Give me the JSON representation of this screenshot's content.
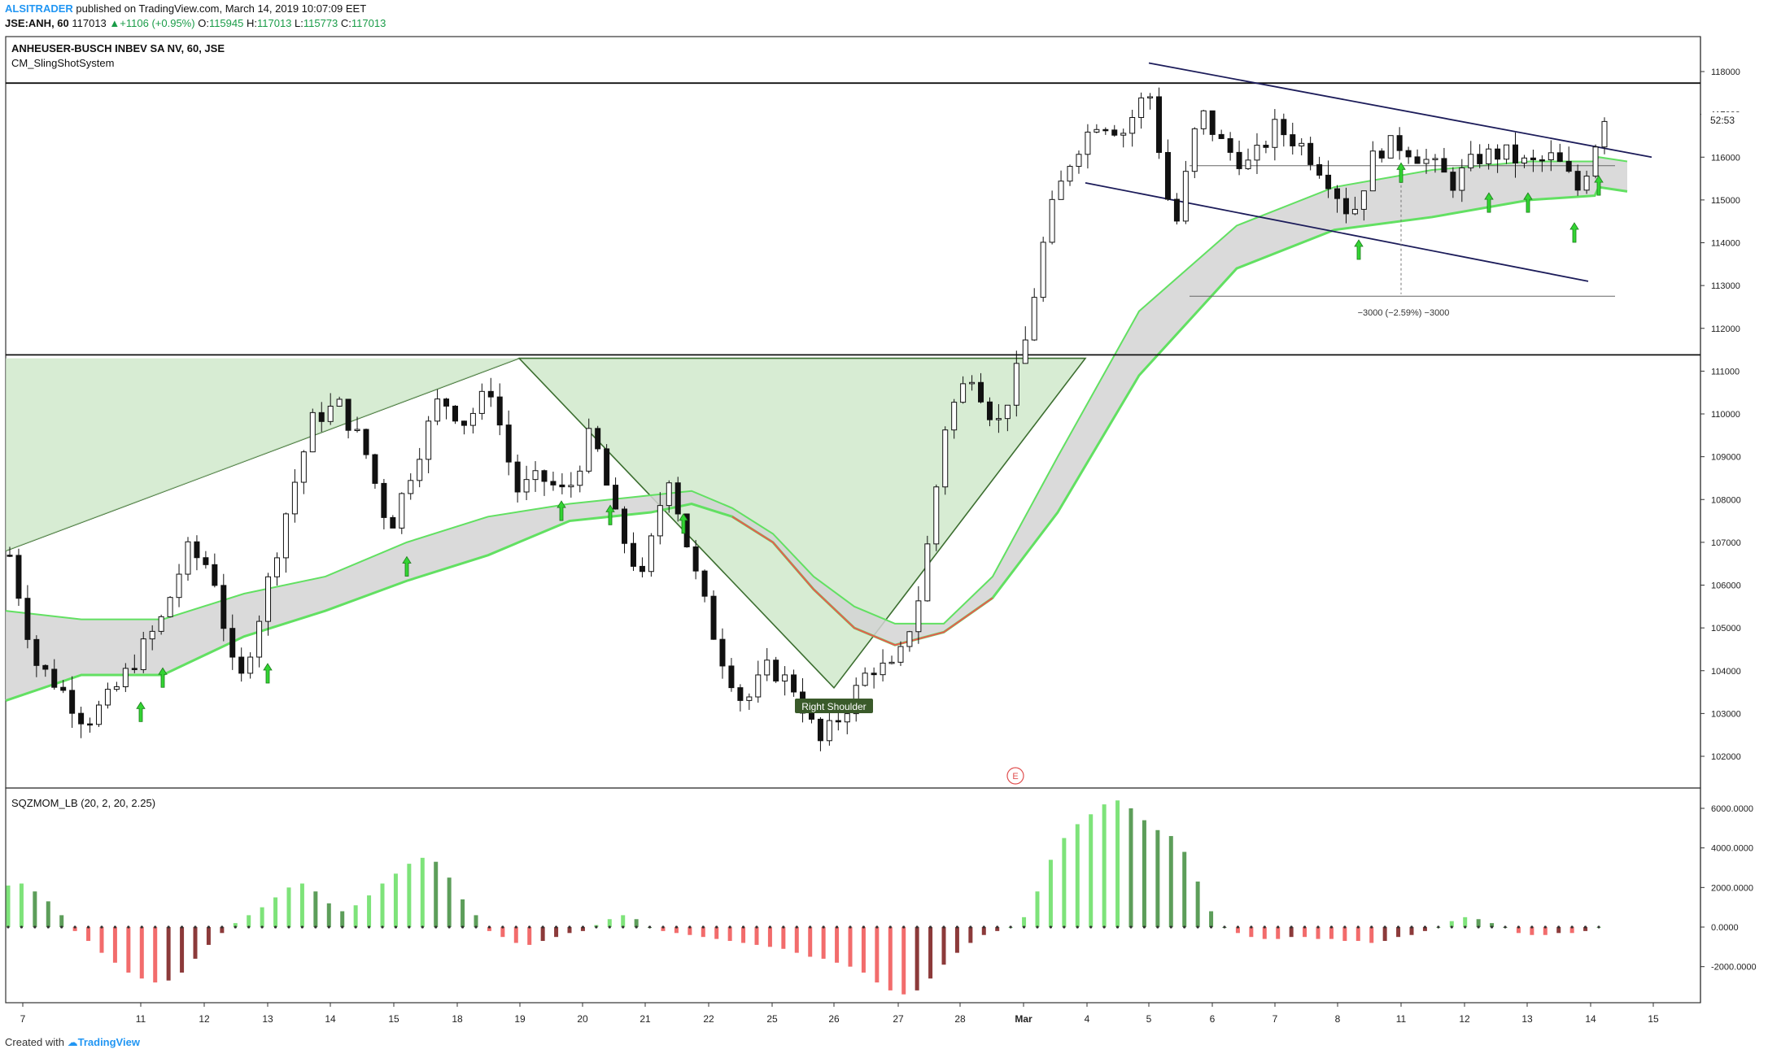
{
  "header": {
    "author": "ALSITRADER",
    "published_text": "published on TradingView.com, March 14, 2019 10:07:09 EET",
    "symbol": "JSE:ANH, 60",
    "last": "117013",
    "change": "+1106 (+0.95%)",
    "open_label": "O:",
    "open": "115945",
    "high_label": "H:",
    "high": "117013",
    "low_label": "L:",
    "low": "115773",
    "close_label": "C:",
    "close": "117013"
  },
  "main_pane": {
    "title": "ANHEUSER-BUSCH INBEV SA NV, 60, JSE",
    "indicator": "CM_SlingShotSystem",
    "countdown": "52:53",
    "measure_label": "−3000 (−2.59%) −3000",
    "pattern_label": "Right Shoulder",
    "earnings_marker": "E"
  },
  "osc_pane": {
    "title": "SQZMOM_LB (20, 2, 20, 2.25)"
  },
  "footer": {
    "created_with": "Created with",
    "brand": "TradingView"
  },
  "colors": {
    "bull_strong": "#7ee37a",
    "bull_weak": "#5d9e5a",
    "bear_strong": "#f26c6c",
    "bear_weak": "#8c3a3a",
    "ema_fast": "#62e062",
    "ema_slow_red": "#e85a4f",
    "pattern_fill": "#c9e6c4",
    "trend_line": "#1c1c5a"
  },
  "chart_data": [
    {
      "type": "candlestick",
      "title": "ANHEUSER-BUSCH INBEV SA NV, 60, JSE",
      "x_tick_labels": [
        "7",
        "11",
        "12",
        "13",
        "14",
        "15",
        "18",
        "19",
        "20",
        "21",
        "22",
        "25",
        "26",
        "27",
        "28",
        "Mar",
        "4",
        "5",
        "6",
        "7",
        "8",
        "11",
        "12",
        "13",
        "14",
        "15"
      ],
      "y_tick_labels": [
        "118000",
        "117000",
        "116000",
        "115000",
        "114000",
        "113000",
        "112000",
        "111000",
        "110000",
        "109000",
        "108000",
        "107000",
        "106000",
        "105000",
        "104000",
        "103000",
        "102000"
      ],
      "ylim": [
        101700,
        118700
      ],
      "horizontal_levels": [
        117730,
        111380
      ],
      "price_path": [
        106700,
        104200,
        103600,
        102800,
        103400,
        104300,
        105200,
        106800,
        106400,
        103500,
        105600,
        107900,
        109900,
        110200,
        109200,
        107300,
        108900,
        110400,
        109800,
        110600,
        108200,
        108500,
        108100,
        109600,
        107400,
        106100,
        108700,
        106400,
        104500,
        103200,
        104100,
        103600,
        102300,
        103100,
        104100,
        104000,
        105900,
        109900,
        111000,
        109700,
        111300,
        114500,
        116100,
        116900,
        116600,
        117600,
        114200,
        117100,
        116200,
        115800,
        116700,
        116300,
        115600,
        114600,
        116200,
        116300,
        115900,
        115400,
        116000,
        116100,
        115800,
        116000,
        115200,
        117000
      ],
      "pattern": "inverse head and shoulders",
      "channel": "descending",
      "measurement": "-3000 (-2.59%)"
    },
    {
      "type": "bar",
      "title": "SQZMOM_LB (20, 2, 20, 2.25)",
      "y_tick_labels": [
        "6000.0000",
        "4000.0000",
        "2000.0000",
        "0.0000",
        "-2000.0000"
      ],
      "ylim": [
        -3800,
        6600
      ],
      "momentum": [
        2100,
        2200,
        1800,
        1300,
        600,
        -200,
        -700,
        -1300,
        -1800,
        -2300,
        -2600,
        -2800,
        -2700,
        -2300,
        -1600,
        -900,
        -300,
        200,
        600,
        1000,
        1500,
        2000,
        2200,
        1800,
        1200,
        800,
        1100,
        1600,
        2200,
        2700,
        3200,
        3500,
        3300,
        2500,
        1400,
        600,
        -200,
        -500,
        -800,
        -900,
        -700,
        -500,
        -300,
        -200,
        100,
        400,
        600,
        400,
        0,
        -200,
        -300,
        -400,
        -500,
        -600,
        -700,
        -800,
        -900,
        -1000,
        -1100,
        -1300,
        -1500,
        -1600,
        -1800,
        -2000,
        -2300,
        -2800,
        -3200,
        -3400,
        -3200,
        -2600,
        -1900,
        -1300,
        -800,
        -400,
        -200,
        0,
        500,
        1800,
        3400,
        4500,
        5200,
        5700,
        6200,
        6400,
        6000,
        5400,
        4900,
        4600,
        3800,
        2300,
        800,
        0,
        -300,
        -500,
        -600,
        -600,
        -500,
        -500,
        -600,
        -600,
        -700,
        -700,
        -800,
        -700,
        -500,
        -400,
        -200,
        0,
        300,
        500,
        400,
        200,
        0,
        -300,
        -400,
        -400,
        -300,
        -300,
        -200,
        0
      ]
    }
  ]
}
